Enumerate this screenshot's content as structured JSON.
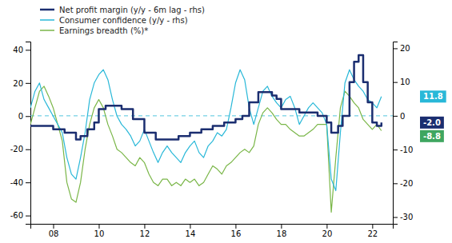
{
  "chart_data": {
    "type": "line",
    "xlim": [
      2007.0,
      2022.9
    ],
    "xticks": [
      {
        "value": 2008,
        "label": "08"
      },
      {
        "value": 2010,
        "label": "10"
      },
      {
        "value": 2012,
        "label": "12"
      },
      {
        "value": 2014,
        "label": "14"
      },
      {
        "value": 2016,
        "label": "16"
      },
      {
        "value": 2018,
        "label": "18"
      },
      {
        "value": 2020,
        "label": "20"
      },
      {
        "value": 2022,
        "label": "22"
      }
    ],
    "ylim": [
      -65,
      45
    ],
    "yticks": [
      -60,
      -40,
      -20,
      0,
      20,
      40
    ],
    "y2lim": [
      -32,
      22
    ],
    "y2ticks": [
      -30,
      -20,
      -10,
      0,
      10,
      20
    ],
    "grid": false,
    "legend": "top-left",
    "series": [
      {
        "name": "Net profit margin (y/y - 6m lag - rhs)",
        "color": "#1b2e70",
        "axis": "y2",
        "type": "step",
        "x": [
          2007.0,
          2007.5,
          2008.0,
          2008.5,
          2009.0,
          2009.2,
          2009.5,
          2009.8,
          2010.0,
          2010.3,
          2010.6,
          2011.0,
          2011.5,
          2012.0,
          2012.5,
          2013.0,
          2013.5,
          2014.0,
          2014.5,
          2015.0,
          2015.5,
          2016.0,
          2016.3,
          2016.6,
          2017.0,
          2017.2,
          2017.4,
          2017.6,
          2017.8,
          2018.0,
          2018.2,
          2018.5,
          2018.8,
          2019.0,
          2019.3,
          2019.6,
          2020.0,
          2020.2,
          2020.5,
          2020.7,
          2021.0,
          2021.2,
          2021.4,
          2021.6,
          2021.8,
          2022.0,
          2022.2,
          2022.4
        ],
        "values": [
          -3,
          -3,
          -4,
          -5,
          -7,
          -6,
          -4,
          -2,
          2,
          3,
          3,
          2,
          -1,
          -5,
          -7,
          -7,
          -6,
          -5,
          -4,
          -3,
          -2,
          -1,
          0,
          4,
          7,
          7,
          7,
          6,
          5,
          2,
          2,
          2,
          1,
          1,
          1,
          0,
          -2,
          -5,
          -3,
          0,
          10,
          16,
          18,
          10,
          4,
          -2,
          -3,
          -2
        ]
      },
      {
        "name": "Consumer confidence (y/y - rhs)",
        "color": "#29b8d8",
        "x": [
          2007.0,
          2007.2,
          2007.4,
          2007.6,
          2007.8,
          2008.0,
          2008.2,
          2008.4,
          2008.6,
          2008.8,
          2009.0,
          2009.2,
          2009.4,
          2009.6,
          2009.8,
          2010.0,
          2010.2,
          2010.4,
          2010.6,
          2010.8,
          2011.0,
          2011.2,
          2011.4,
          2011.6,
          2011.8,
          2012.0,
          2012.2,
          2012.4,
          2012.6,
          2012.8,
          2013.0,
          2013.2,
          2013.4,
          2013.6,
          2013.8,
          2014.0,
          2014.2,
          2014.4,
          2014.6,
          2014.8,
          2015.0,
          2015.2,
          2015.4,
          2015.6,
          2015.8,
          2016.0,
          2016.2,
          2016.4,
          2016.6,
          2016.8,
          2017.0,
          2017.2,
          2017.4,
          2017.6,
          2017.8,
          2018.0,
          2018.2,
          2018.4,
          2018.6,
          2018.8,
          2019.0,
          2019.2,
          2019.4,
          2019.6,
          2019.8,
          2020.0,
          2020.2,
          2020.4,
          2020.6,
          2020.8,
          2021.0,
          2021.2,
          2021.4,
          2021.6,
          2021.8,
          2022.0,
          2022.2,
          2022.4
        ],
        "values": [
          5,
          15,
          20,
          10,
          5,
          0,
          -5,
          -10,
          -25,
          -35,
          -38,
          -25,
          -10,
          10,
          20,
          25,
          28,
          22,
          10,
          0,
          -5,
          -8,
          -12,
          -18,
          -15,
          -8,
          -15,
          -22,
          -28,
          -22,
          -18,
          -22,
          -25,
          -28,
          -22,
          -18,
          -15,
          -22,
          -25,
          -18,
          -15,
          -10,
          -12,
          -8,
          5,
          20,
          28,
          22,
          5,
          -5,
          5,
          15,
          18,
          12,
          8,
          5,
          10,
          12,
          5,
          -5,
          0,
          5,
          8,
          5,
          2,
          -5,
          -38,
          -45,
          -10,
          20,
          28,
          22,
          18,
          15,
          10,
          8,
          5,
          11.8
        ]
      },
      {
        "name": "Earnings breadth (%)*",
        "color": "#7ab648",
        "x": [
          2007.0,
          2007.2,
          2007.4,
          2007.6,
          2007.8,
          2008.0,
          2008.2,
          2008.4,
          2008.6,
          2008.8,
          2009.0,
          2009.2,
          2009.4,
          2009.6,
          2009.8,
          2010.0,
          2010.2,
          2010.4,
          2010.6,
          2010.8,
          2011.0,
          2011.2,
          2011.4,
          2011.6,
          2011.8,
          2012.0,
          2012.2,
          2012.4,
          2012.6,
          2012.8,
          2013.0,
          2013.2,
          2013.4,
          2013.6,
          2013.8,
          2014.0,
          2014.2,
          2014.4,
          2014.6,
          2014.8,
          2015.0,
          2015.2,
          2015.4,
          2015.6,
          2015.8,
          2016.0,
          2016.2,
          2016.4,
          2016.6,
          2016.8,
          2017.0,
          2017.2,
          2017.4,
          2017.6,
          2017.8,
          2018.0,
          2018.2,
          2018.4,
          2018.6,
          2018.8,
          2019.0,
          2019.2,
          2019.4,
          2019.6,
          2019.8,
          2020.0,
          2020.2,
          2020.4,
          2020.6,
          2020.8,
          2021.0,
          2021.2,
          2021.4,
          2021.6,
          2021.8,
          2022.0,
          2022.2,
          2022.4
        ],
        "values": [
          -5,
          5,
          15,
          18,
          12,
          5,
          -5,
          -15,
          -40,
          -50,
          -52,
          -40,
          -20,
          -5,
          5,
          10,
          5,
          -5,
          -12,
          -20,
          -22,
          -25,
          -28,
          -30,
          -25,
          -28,
          -35,
          -40,
          -42,
          -38,
          -38,
          -42,
          -40,
          -42,
          -38,
          -40,
          -38,
          -42,
          -40,
          -35,
          -30,
          -32,
          -35,
          -30,
          -28,
          -25,
          -22,
          -20,
          -22,
          -18,
          -5,
          2,
          5,
          2,
          -2,
          -5,
          -5,
          -8,
          -10,
          -12,
          -12,
          -10,
          -8,
          -5,
          -5,
          -5,
          -58,
          -25,
          5,
          15,
          12,
          8,
          5,
          -2,
          -5,
          -8,
          -5,
          -8.8
        ]
      }
    ],
    "reference_lines": [
      {
        "value": 0,
        "axis": "y2",
        "color": "#29b8d8",
        "line_style": "dashed"
      }
    ],
    "annotations": [
      {
        "text": "11.8",
        "value": 11.8,
        "axis": "y",
        "color": "#29b8d8"
      },
      {
        "text": "-2.0",
        "value": -2.0,
        "axis": "y2",
        "color": "#1b2e70"
      },
      {
        "text": "-8.8",
        "value": -8.8,
        "axis": "y",
        "color": "#3fa660"
      }
    ]
  }
}
